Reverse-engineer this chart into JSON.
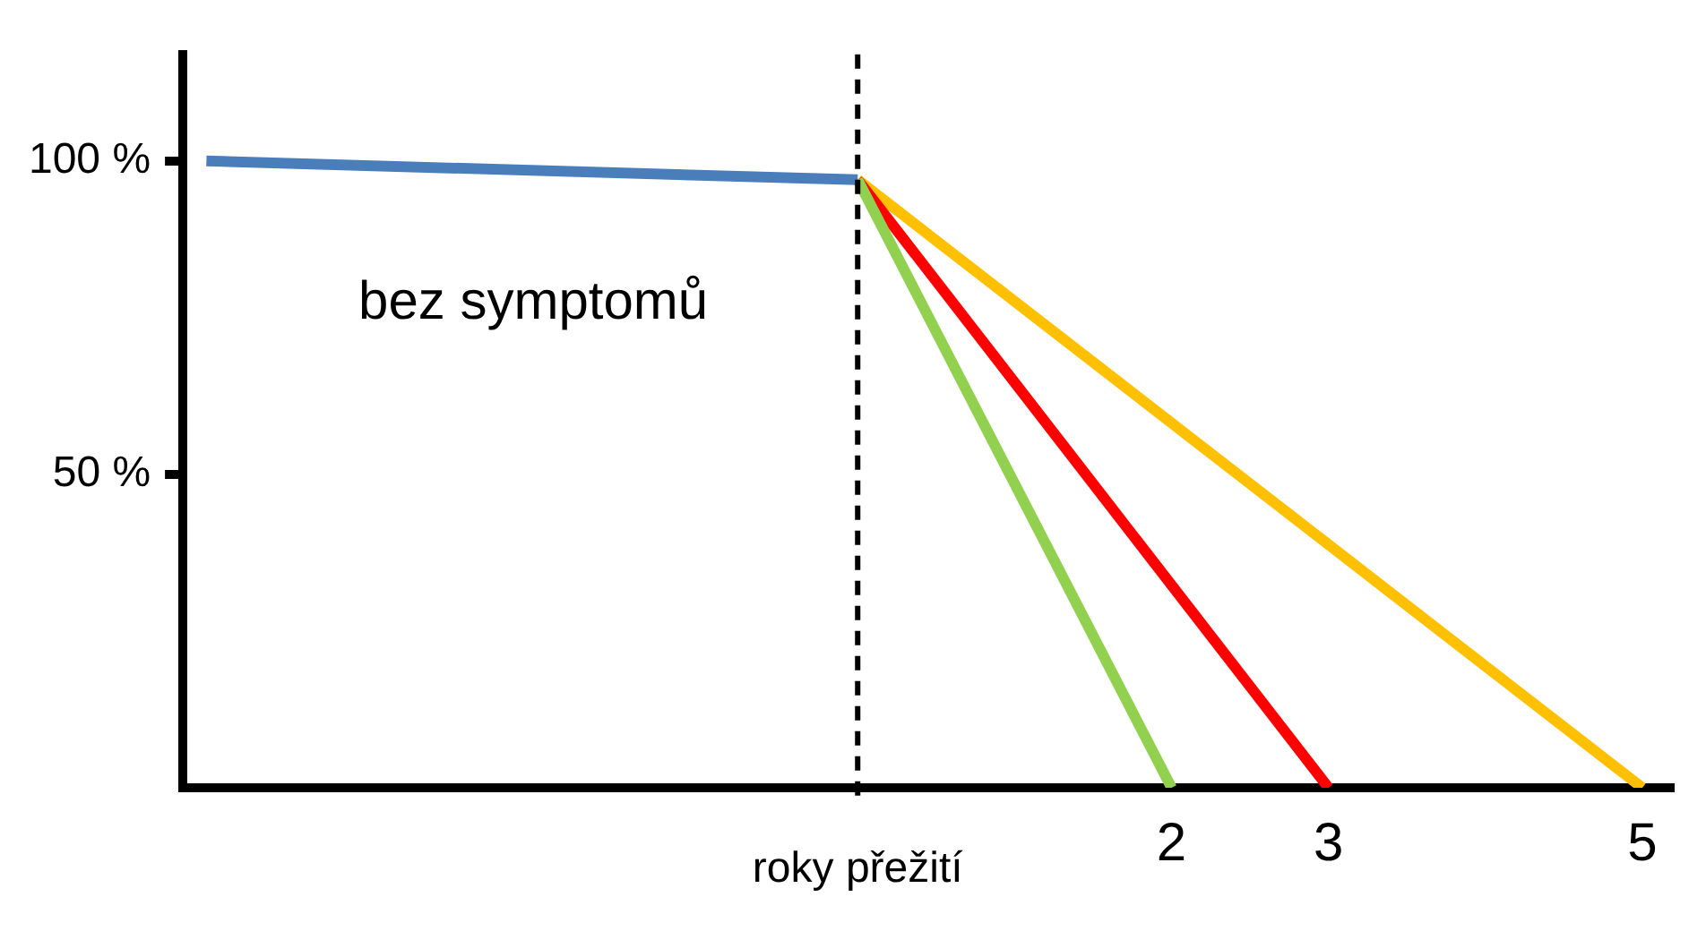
{
  "chart_data": {
    "type": "line",
    "xlabel": "roky přežití",
    "xlim": [
      -4.3,
      5.2
    ],
    "xticks": [
      2,
      3,
      5
    ],
    "ylim": [
      0,
      117
    ],
    "yticks": [
      {
        "value": 50,
        "label": "50 %"
      },
      {
        "value": 100,
        "label": "100 %"
      }
    ],
    "grid": false,
    "legend": false,
    "marker": "none",
    "line_style": "solid",
    "series": [
      {
        "color": "#4a7ebb",
        "x": [
          -4.15,
          0
        ],
        "values": [
          100,
          97
        ]
      },
      {
        "color": "#92d050",
        "x": [
          0,
          2
        ],
        "values": [
          97,
          0
        ]
      },
      {
        "color": "#ff0000",
        "x": [
          0,
          3
        ],
        "values": [
          97,
          0
        ]
      },
      {
        "color": "#ffc000",
        "x": [
          0,
          5
        ],
        "values": [
          97,
          0
        ]
      }
    ],
    "ref_lines": [
      {
        "axis": "x",
        "value": 0,
        "color": "#000000",
        "line_style": "dashed"
      }
    ],
    "annotations": [
      "bez symptomů"
    ]
  }
}
